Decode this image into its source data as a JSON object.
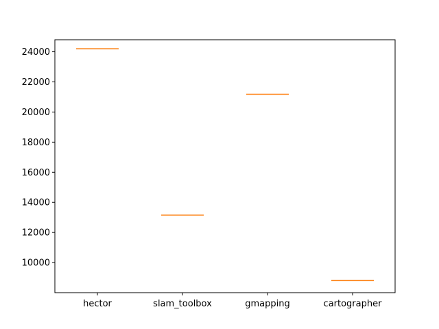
{
  "chart_data": {
    "type": "box",
    "title": "",
    "xlabel": "",
    "ylabel": "",
    "categories": [
      "hector",
      "slam_toolbox",
      "gmapping",
      "cartographer"
    ],
    "values": [
      24200,
      13150,
      21180,
      8800
    ],
    "ylim": [
      8000,
      24800
    ],
    "yticks": [
      10000,
      12000,
      14000,
      16000,
      18000,
      20000,
      22000,
      24000
    ],
    "grid": false,
    "colors": {
      "box_edge": "#000000",
      "median": "#ff7f0e",
      "axis": "#000000"
    }
  }
}
